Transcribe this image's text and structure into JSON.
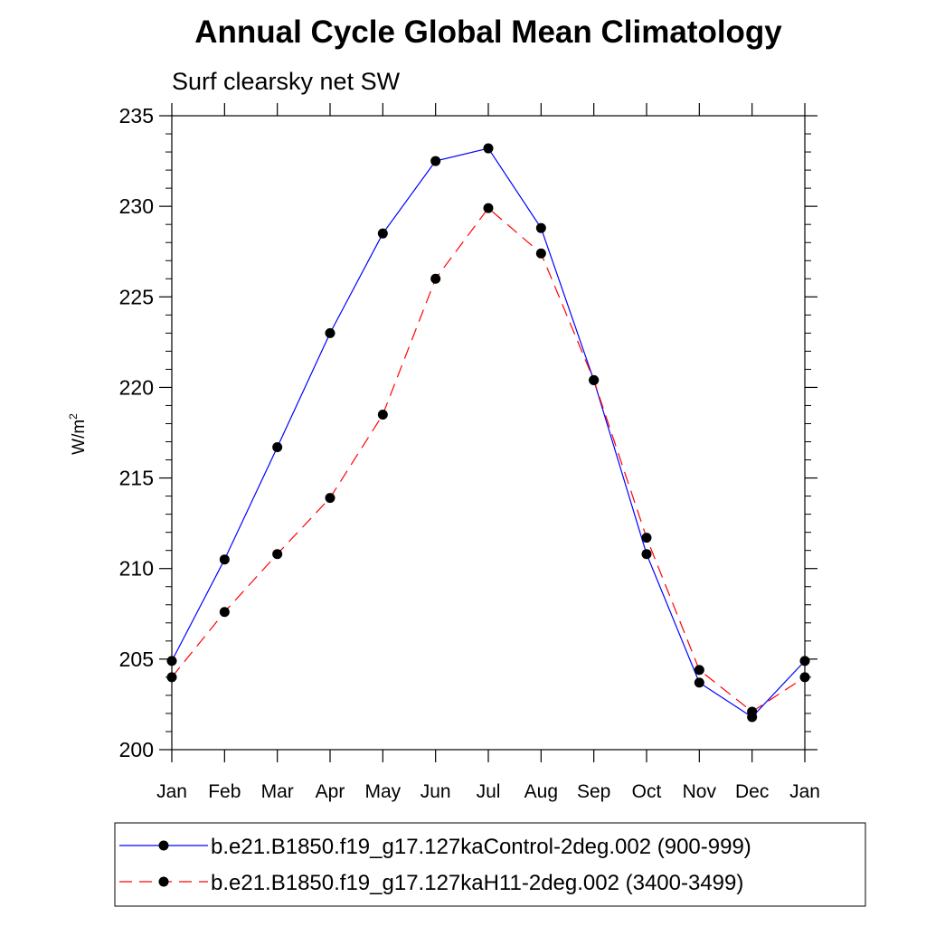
{
  "chart_data": {
    "type": "line",
    "title": "Annual Cycle Global Mean Climatology",
    "subtitle": "Surf clearsky net SW",
    "ylabel": "W/m",
    "ylabel_sup": "2",
    "ylim": [
      200,
      235
    ],
    "y_ticks": [
      200,
      205,
      210,
      215,
      220,
      225,
      230,
      235
    ],
    "y_minor_step": 1,
    "categories": [
      "Jan",
      "Feb",
      "Mar",
      "Apr",
      "May",
      "Jun",
      "Jul",
      "Aug",
      "Sep",
      "Oct",
      "Nov",
      "Dec",
      "Jan"
    ],
    "grid": false,
    "legend_position": "bottom",
    "series": [
      {
        "name": "b.e21.B1850.f19_g17.127kaControl-2deg.002 (900-999)",
        "color": "#0000ff",
        "dash": "solid",
        "marker": "filled-circle",
        "values": [
          204.9,
          210.5,
          216.7,
          223.0,
          228.5,
          232.5,
          233.2,
          228.8,
          220.4,
          210.8,
          203.7,
          201.8,
          204.9
        ]
      },
      {
        "name": "b.e21.B1850.f19_g17.127kaH11-2deg.002 (3400-3499)",
        "color": "#ff0000",
        "dash": "dashed",
        "marker": "filled-circle",
        "values": [
          204.0,
          207.6,
          210.8,
          213.9,
          218.5,
          226.0,
          229.9,
          227.4,
          220.4,
          211.7,
          204.4,
          202.1,
          204.0
        ]
      }
    ]
  }
}
